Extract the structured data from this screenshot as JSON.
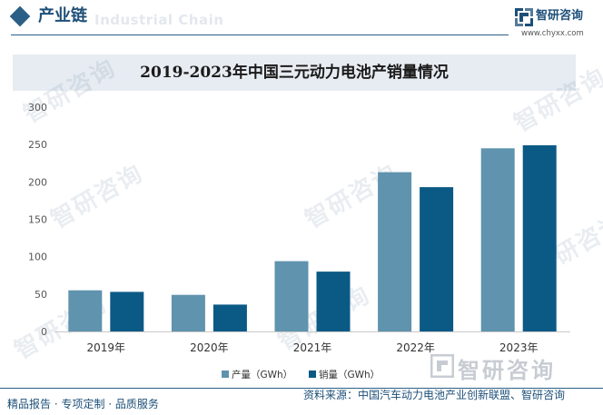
{
  "header": {
    "title": "产业链",
    "ghost_text": "Industrial Chain",
    "brand_name": "智研咨询",
    "brand_url": "www.chyxx.com"
  },
  "watermark": {
    "text": "智研咨询"
  },
  "chart_data": {
    "type": "bar",
    "title": "2019-2023年中国三元动力电池产销量情况",
    "categories": [
      "2019年",
      "2020年",
      "2021年",
      "2022年",
      "2023年"
    ],
    "series": [
      {
        "name": "产量（GWh）",
        "color": "#5f93ae",
        "values": [
          55,
          49,
          94,
          213,
          245
        ]
      },
      {
        "name": "销量（GWh）",
        "color": "#0b5a85",
        "values": [
          53,
          36,
          80,
          193,
          249
        ]
      }
    ],
    "ylim": [
      0,
      300
    ],
    "yticks": [
      0,
      50,
      100,
      150,
      200,
      250,
      300
    ],
    "grid": false,
    "legend_position": "bottom-center"
  },
  "footer": {
    "left": "精品报告 · 专项定制 · 品质服务",
    "source": "资料来源：中国汽车动力电池产业创新联盟、智研咨询"
  }
}
